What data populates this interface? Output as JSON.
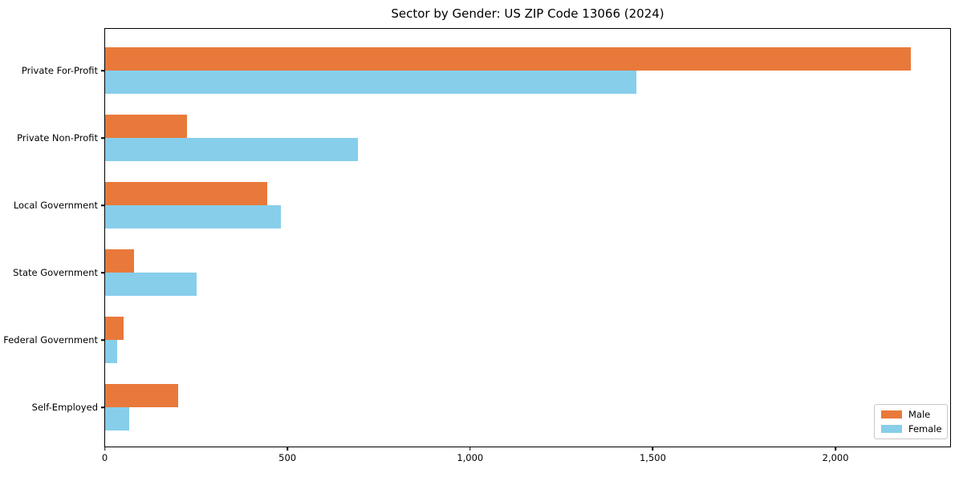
{
  "title": "Sector by Gender: US ZIP Code 13066 (2024)",
  "colors": {
    "male": "#E8793A",
    "female": "#87CEEB",
    "axis": "#000000",
    "background": "#FFFFFF",
    "legend_border": "#C8C8C8"
  },
  "legend": {
    "position": "lower right",
    "items": [
      {
        "label": "Male",
        "color": "#E8793A"
      },
      {
        "label": "Female",
        "color": "#87CEEB"
      }
    ]
  },
  "chart_data": {
    "type": "bar",
    "orientation": "horizontal",
    "title": "Sector by Gender: US ZIP Code 13066 (2024)",
    "xlabel": "",
    "ylabel": "",
    "categories": [
      "Private For-Profit",
      "Private Non-Profit",
      "Local Government",
      "State Government",
      "Federal Government",
      "Self-Employed"
    ],
    "series": [
      {
        "name": "Male",
        "color": "#E8793A",
        "values": [
          2206,
          223,
          443,
          80,
          50,
          200
        ]
      },
      {
        "name": "Female",
        "color": "#87CEEB",
        "values": [
          1455,
          691,
          480,
          251,
          32,
          66
        ]
      }
    ],
    "xlim": [
      0,
      2316
    ],
    "xticks": [
      0,
      500,
      1000,
      1500,
      2000
    ],
    "xtick_labels": [
      "0",
      "500",
      "1,000",
      "1,500",
      "2,000"
    ],
    "grid": false,
    "legend_position": "lower right"
  }
}
